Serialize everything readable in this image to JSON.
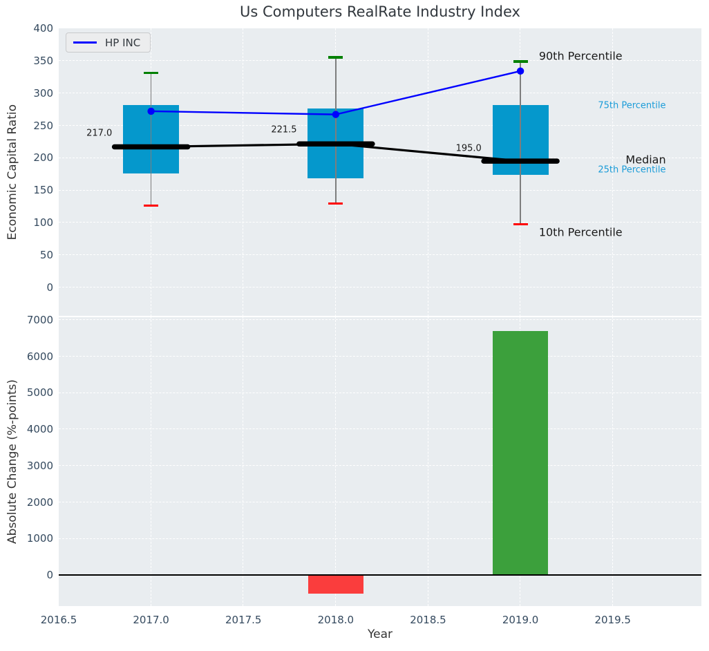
{
  "title": "Us Computers RealRate Industry Index",
  "x_axis": {
    "label": "Year",
    "xlim": [
      2016.5,
      2019.98
    ],
    "tick_values": [
      2016.5,
      2017.0,
      2017.5,
      2018.0,
      2018.5,
      2019.0,
      2019.5
    ],
    "tick_labels": [
      "2016.5",
      "2017.0",
      "2017.5",
      "2018.0",
      "2018.5",
      "2019.0",
      "2019.5"
    ]
  },
  "chart_data": [
    {
      "type": "box",
      "title": "Us Computers RealRate Industry Index",
      "ylabel": "Economic Capital Ratio",
      "ylim": [
        -45,
        400
      ],
      "yticks": [
        0,
        50,
        100,
        150,
        200,
        250,
        300,
        350,
        400
      ],
      "grid": true,
      "boxes": [
        {
          "year": 2017,
          "p10": 126,
          "q1": 176,
          "median": 217.0,
          "q3": 282,
          "p90": 331,
          "median_label": "217.0",
          "label_pos": [
            2016.65,
            238
          ]
        },
        {
          "year": 2018,
          "p10": 129,
          "q1": 168,
          "median": 221.5,
          "q3": 276,
          "p90": 355,
          "median_label": "221.5",
          "label_pos": [
            2017.65,
            243
          ]
        },
        {
          "year": 2019,
          "p10": 97,
          "q1": 174,
          "median": 195.0,
          "q3": 282,
          "p90": 349,
          "median_label": "195.0",
          "label_pos": [
            2018.65,
            214
          ]
        }
      ],
      "series": [
        {
          "name": "HP INC",
          "color": "#0000ff",
          "x": [
            2017,
            2018,
            2019
          ],
          "values": [
            272,
            267,
            334
          ]
        }
      ],
      "legend": {
        "position": "upper left"
      },
      "percentile_labels": [
        {
          "text": "90th Percentile",
          "x": 2019.1,
          "y": 357,
          "style": "big"
        },
        {
          "text": "75th Percentile",
          "x": 2019.42,
          "y": 280,
          "style": "small"
        },
        {
          "text": "Median",
          "x": 2019.57,
          "y": 197,
          "style": "big"
        },
        {
          "text": "25th Percentile",
          "x": 2019.42,
          "y": 181,
          "style": "small"
        },
        {
          "text": "10th Percentile",
          "x": 2019.1,
          "y": 85,
          "style": "big"
        }
      ],
      "colors": {
        "box_fill": "#0598cc",
        "whisker": "#7d7d7d",
        "cap_top": "#008000",
        "cap_bottom": "#ff0000",
        "median_line": "#000000",
        "hp_line": "#0000ff"
      }
    },
    {
      "type": "bar",
      "ylabel": "Absolute Change (%-points)",
      "ylim": [
        -850,
        7090
      ],
      "yticks": [
        0,
        1000,
        2000,
        3000,
        4000,
        5000,
        6000,
        7000
      ],
      "grid": true,
      "bar_width_years": 0.3,
      "bars": [
        {
          "x": 2018,
          "value": -500,
          "color": "#fa3d3d"
        },
        {
          "x": 2019,
          "value": 6700,
          "color": "#3ca03c"
        }
      ],
      "zero_line_color": "#000000"
    }
  ],
  "style": {
    "plot_bg": "#e9edf0",
    "grid_color": "#ffffff",
    "tick_color": "#34495e"
  }
}
